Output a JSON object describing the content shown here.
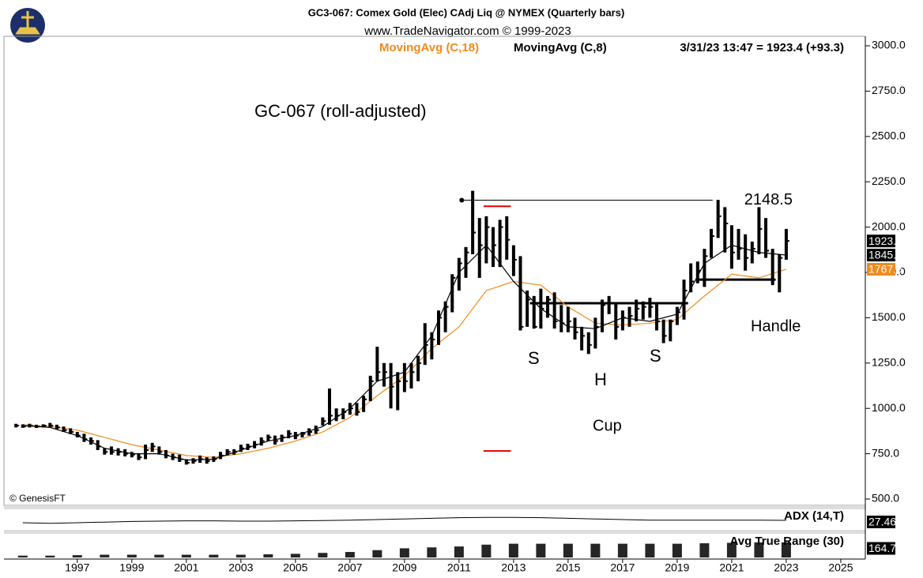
{
  "header": {
    "title": "GC3-067:  Comex Gold (Elec) CAdj Liq @ NYMEX  (Quarterly bars)",
    "subtitle": "www.TradeNavigator.com © 1999-2023"
  },
  "chart_data": {
    "type": "ohlc",
    "title": "GC-067 (roll-adjusted)",
    "color": "#000000",
    "x": [
      1994.75,
      1995,
      1995.25,
      1995.5,
      1995.75,
      1996,
      1996.25,
      1996.5,
      1996.75,
      1997,
      1997.25,
      1997.5,
      1997.75,
      1998,
      1998.25,
      1998.5,
      1998.75,
      1999,
      1999.25,
      1999.5,
      1999.75,
      2000,
      2000.25,
      2000.5,
      2000.75,
      2001,
      2001.25,
      2001.5,
      2001.75,
      2002,
      2002.25,
      2002.5,
      2002.75,
      2003,
      2003.25,
      2003.5,
      2003.75,
      2004,
      2004.25,
      2004.5,
      2004.75,
      2005,
      2005.25,
      2005.5,
      2005.75,
      2006,
      2006.25,
      2006.5,
      2006.75,
      2007,
      2007.25,
      2007.5,
      2007.75,
      2008,
      2008.25,
      2008.5,
      2008.75,
      2009,
      2009.25,
      2009.5,
      2009.75,
      2010,
      2010.25,
      2010.5,
      2010.75,
      2011,
      2011.25,
      2011.5,
      2011.75,
      2012,
      2012.25,
      2012.5,
      2012.75,
      2013,
      2013.25,
      2013.5,
      2013.75,
      2014,
      2014.25,
      2014.5,
      2014.75,
      2015,
      2015.25,
      2015.5,
      2015.75,
      2016,
      2016.25,
      2016.5,
      2016.75,
      2017,
      2017.25,
      2017.5,
      2017.75,
      2018,
      2018.25,
      2018.5,
      2018.75,
      2019,
      2019.25,
      2019.5,
      2019.75,
      2020,
      2020.25,
      2020.5,
      2020.75,
      2021,
      2021.25,
      2021.5,
      2021.75,
      2022,
      2022.25,
      2022.5,
      2022.75,
      2023
    ],
    "high": [
      915,
      912,
      915,
      910,
      912,
      920,
      910,
      900,
      890,
      870,
      860,
      840,
      825,
      780,
      790,
      780,
      775,
      760,
      750,
      800,
      810,
      790,
      770,
      750,
      745,
      720,
      725,
      740,
      730,
      735,
      760,
      775,
      775,
      800,
      805,
      820,
      840,
      855,
      850,
      855,
      880,
      870,
      870,
      890,
      905,
      950,
      1110,
      1000,
      1000,
      1030,
      1030,
      1070,
      1180,
      1340,
      1250,
      1250,
      1200,
      1250,
      1250,
      1290,
      1470,
      1420,
      1540,
      1590,
      1740,
      1830,
      1890,
      2200,
      2050,
      2060,
      2000,
      2040,
      2060,
      1900,
      1840,
      1650,
      1620,
      1660,
      1620,
      1640,
      1570,
      1560,
      1500,
      1450,
      1420,
      1500,
      1600,
      1620,
      1580,
      1540,
      1560,
      1600,
      1590,
      1610,
      1580,
      1490,
      1490,
      1560,
      1710,
      1800,
      1810,
      1880,
      1990,
      2150,
      2110,
      2010,
      1990,
      1960,
      1920,
      2110,
      2050,
      1880,
      1850,
      1990
    ],
    "low": [
      895,
      893,
      895,
      892,
      895,
      895,
      885,
      870,
      858,
      840,
      815,
      800,
      770,
      745,
      745,
      740,
      735,
      730,
      715,
      720,
      760,
      745,
      725,
      715,
      705,
      690,
      695,
      700,
      695,
      705,
      720,
      740,
      745,
      760,
      770,
      780,
      795,
      820,
      800,
      815,
      835,
      830,
      840,
      850,
      860,
      905,
      910,
      930,
      940,
      965,
      960,
      980,
      1040,
      1150,
      1120,
      1000,
      990,
      1090,
      1110,
      1150,
      1240,
      1270,
      1350,
      1420,
      1530,
      1650,
      1720,
      1850,
      1720,
      1800,
      1780,
      1780,
      1820,
      1730,
      1430,
      1450,
      1440,
      1440,
      1500,
      1440,
      1420,
      1420,
      1380,
      1320,
      1300,
      1330,
      1420,
      1520,
      1380,
      1430,
      1450,
      1480,
      1490,
      1500,
      1430,
      1360,
      1370,
      1460,
      1490,
      1640,
      1690,
      1670,
      1830,
      1940,
      1860,
      1770,
      1820,
      1760,
      1800,
      1850,
      1830,
      1680,
      1640,
      1820
    ],
    "close": [
      905,
      900,
      905,
      900,
      905,
      905,
      895,
      880,
      870,
      850,
      830,
      820,
      790,
      760,
      760,
      760,
      750,
      745,
      730,
      770,
      790,
      760,
      740,
      730,
      720,
      700,
      710,
      720,
      710,
      720,
      740,
      760,
      760,
      780,
      790,
      800,
      820,
      840,
      820,
      840,
      860,
      850,
      860,
      870,
      880,
      930,
      960,
      960,
      980,
      1000,
      980,
      1050,
      1150,
      1200,
      1200,
      1120,
      1150,
      1150,
      1200,
      1250,
      1350,
      1380,
      1500,
      1560,
      1720,
      1800,
      1860,
      1970,
      1900,
      2000,
      1900,
      2000,
      1930,
      1820,
      1450,
      1600,
      1450,
      1550,
      1600,
      1480,
      1470,
      1480,
      1420,
      1400,
      1350,
      1450,
      1570,
      1580,
      1450,
      1500,
      1510,
      1550,
      1560,
      1560,
      1480,
      1400,
      1480,
      1530,
      1650,
      1700,
      1760,
      1840,
      1950,
      2060,
      2020,
      1860,
      1880,
      1830,
      1880,
      1990,
      1870,
      1710,
      1830,
      1923.4
    ],
    "last_label": "3/31/23 13:47 = 1923.4 (+93.3)",
    "series": [
      {
        "name": "MovingAvg (C,18)",
        "color": "#f28a1e",
        "x": [
          1995,
          1996,
          1997,
          1998,
          1999,
          2000,
          2001,
          2002,
          2003,
          2004,
          2005,
          2006,
          2007,
          2008,
          2009,
          2010,
          2011,
          2012,
          2013,
          2014,
          2015,
          2016,
          2017,
          2018,
          2019,
          2020,
          2021,
          2022,
          2023
        ],
        "values": [
          910,
          900,
          880,
          840,
          800,
          770,
          740,
          730,
          750,
          780,
          820,
          870,
          950,
          1070,
          1180,
          1330,
          1450,
          1650,
          1700,
          1680,
          1560,
          1470,
          1460,
          1470,
          1490,
          1620,
          1740,
          1720,
          1767.5
        ]
      },
      {
        "name": "MovingAvg (C,8)",
        "color": "#000000",
        "x": [
          1995,
          1996,
          1997,
          1998,
          1999,
          2000,
          2001,
          2002,
          2003,
          2004,
          2005,
          2006,
          2007,
          2008,
          2009,
          2010,
          2011,
          2012,
          2013,
          2014,
          2015,
          2016,
          2017,
          2018,
          2019,
          2020,
          2021,
          2022,
          2023
        ],
        "values": [
          905,
          895,
          850,
          780,
          750,
          750,
          715,
          720,
          770,
          820,
          850,
          900,
          1000,
          1150,
          1200,
          1400,
          1750,
          1900,
          1700,
          1550,
          1450,
          1440,
          1500,
          1480,
          1520,
          1800,
          1900,
          1860,
          1845.7
        ]
      }
    ],
    "levels": [
      {
        "value": 2148.5,
        "x": [
          2011.1,
          2020.3
        ]
      },
      {
        "value": 1580,
        "x": [
          2013.6,
          2019.4
        ]
      },
      {
        "value": 1710,
        "x": [
          2019.7,
          2022.6
        ]
      }
    ],
    "markers": [
      {
        "value": 2115,
        "color": "#e00000",
        "x": [
          2011.9,
          2012.9
        ]
      },
      {
        "value": 765,
        "color": "#e00000",
        "x": [
          2011.9,
          2012.9
        ]
      }
    ],
    "annotations": [
      "S",
      "H",
      "S",
      "Cup",
      "Handle"
    ],
    "copyright": "© GenesisFT",
    "xlim": [
      1994.6,
      2025.9
    ],
    "xticks": [
      1997,
      1999,
      2001,
      2003,
      2005,
      2007,
      2009,
      2011,
      2013,
      2015,
      2017,
      2019,
      2021,
      2023,
      2025
    ],
    "ylim": [
      500,
      3000
    ],
    "yticks": [
      {
        "value": 500,
        "label": "500.0"
      },
      {
        "value": 750,
        "label": "750.0"
      },
      {
        "value": 1000,
        "label": "1000.0"
      },
      {
        "value": 1250,
        "label": "1250.0"
      },
      {
        "value": 1500,
        "label": "1500.0"
      },
      {
        "value": 1750,
        "label": "1750.0"
      },
      {
        "value": 2000,
        "label": "2000.0"
      },
      {
        "value": 2250,
        "label": "2250.0"
      },
      {
        "value": 2500,
        "label": "2500.0"
      },
      {
        "value": 2750,
        "label": "2750.0"
      },
      {
        "value": 3000,
        "label": "3000.0"
      }
    ],
    "indicators": [
      {
        "name": "ADX (14,T)",
        "type": "line",
        "color": "#000000",
        "ylim": [
          0,
          60
        ],
        "x": [
          1995,
          1996,
          1997,
          1998,
          1999,
          2000,
          2001,
          2002,
          2003,
          2004,
          2005,
          2006,
          2007,
          2008,
          2009,
          2010,
          2011,
          2012,
          2013,
          2014,
          2015,
          2016,
          2017,
          2018,
          2019,
          2020,
          2021,
          2022,
          2023
        ],
        "values": [
          20,
          18,
          20,
          22,
          24,
          25,
          26,
          26,
          25,
          25,
          26,
          27,
          28,
          30,
          32,
          34,
          36,
          37,
          37,
          36,
          34,
          32,
          30,
          28,
          28,
          28,
          28,
          28,
          27.46
        ]
      },
      {
        "name": "Avg True Range (30)",
        "type": "bar",
        "color": "#000000",
        "ylim": [
          0,
          250
        ],
        "x": [
          1995,
          1996,
          1997,
          1998,
          1999,
          2000,
          2001,
          2002,
          2003,
          2004,
          2005,
          2006,
          2007,
          2008,
          2009,
          2010,
          2011,
          2012,
          2013,
          2014,
          2015,
          2016,
          2017,
          2018,
          2019,
          2020,
          2021,
          2022,
          2023
        ],
        "values": [
          20,
          20,
          25,
          30,
          30,
          30,
          30,
          30,
          30,
          35,
          40,
          50,
          60,
          80,
          100,
          110,
          120,
          140,
          150,
          150,
          150,
          150,
          150,
          150,
          150,
          155,
          160,
          165,
          164.72
        ]
      }
    ]
  }
}
